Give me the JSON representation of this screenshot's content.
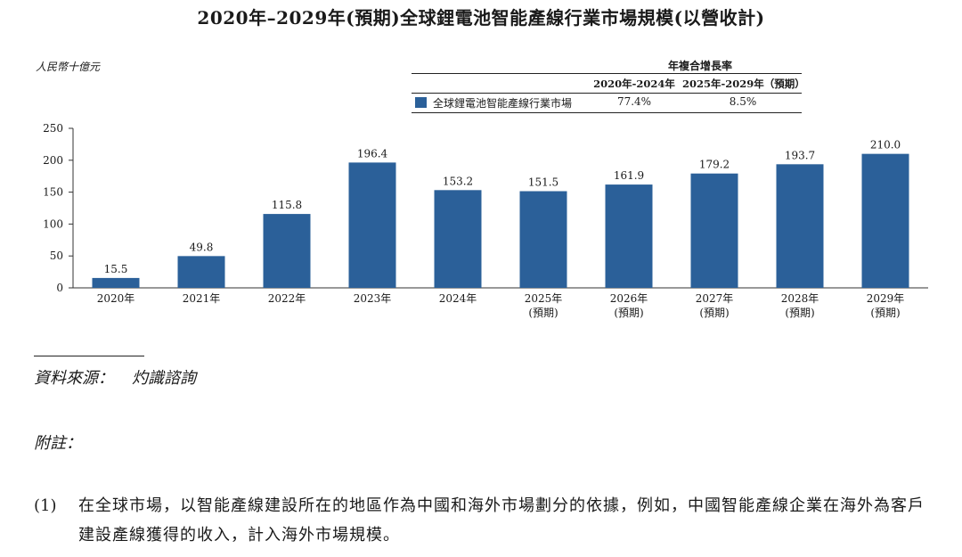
{
  "title": "2020年–2029年(預期)全球鋰電池智能產線行業市場規模(以營收計)",
  "unit_label": "人民幣十億元",
  "cagr_table": {
    "header": "年複合增長率",
    "period1": "2020年-2024年",
    "period2": "2025年-2029年（預期）",
    "series_name": "全球鋰電池智能產線行業市場",
    "value1": "77.4%",
    "value2": "8.5%"
  },
  "chart_data": {
    "type": "bar",
    "categories": [
      "2020年",
      "2021年",
      "2022年",
      "2023年",
      "2024年",
      "2025年",
      "2026年",
      "2027年",
      "2028年",
      "2029年"
    ],
    "category_sublabels": [
      "",
      "",
      "",
      "",
      "",
      "(預期)",
      "(預期)",
      "(預期)",
      "(預期)",
      "(預期)"
    ],
    "values": [
      15.5,
      49.8,
      115.8,
      196.4,
      153.2,
      151.5,
      161.9,
      179.2,
      193.7,
      210.0
    ],
    "value_labels": [
      "15.5",
      "49.8",
      "115.8",
      "196.4",
      "153.2",
      "151.5",
      "161.9",
      "179.2",
      "193.7",
      "210.0"
    ],
    "yticks": [
      0,
      50,
      100,
      150,
      200,
      250
    ],
    "ylim": [
      0,
      250
    ],
    "bar_color": "#2b6099",
    "grid": false
  },
  "source": {
    "label": "資料來源：",
    "value": "灼識諮詢"
  },
  "notes": {
    "title": "附註：",
    "items": [
      {
        "num": "(1)",
        "text": "在全球市場，以智能產線建設所在的地區作為中國和海外市場劃分的依據，例如，中國智能產線企業在海外為客戶建設產線獲得的收入，計入海外市場規模。"
      }
    ]
  }
}
